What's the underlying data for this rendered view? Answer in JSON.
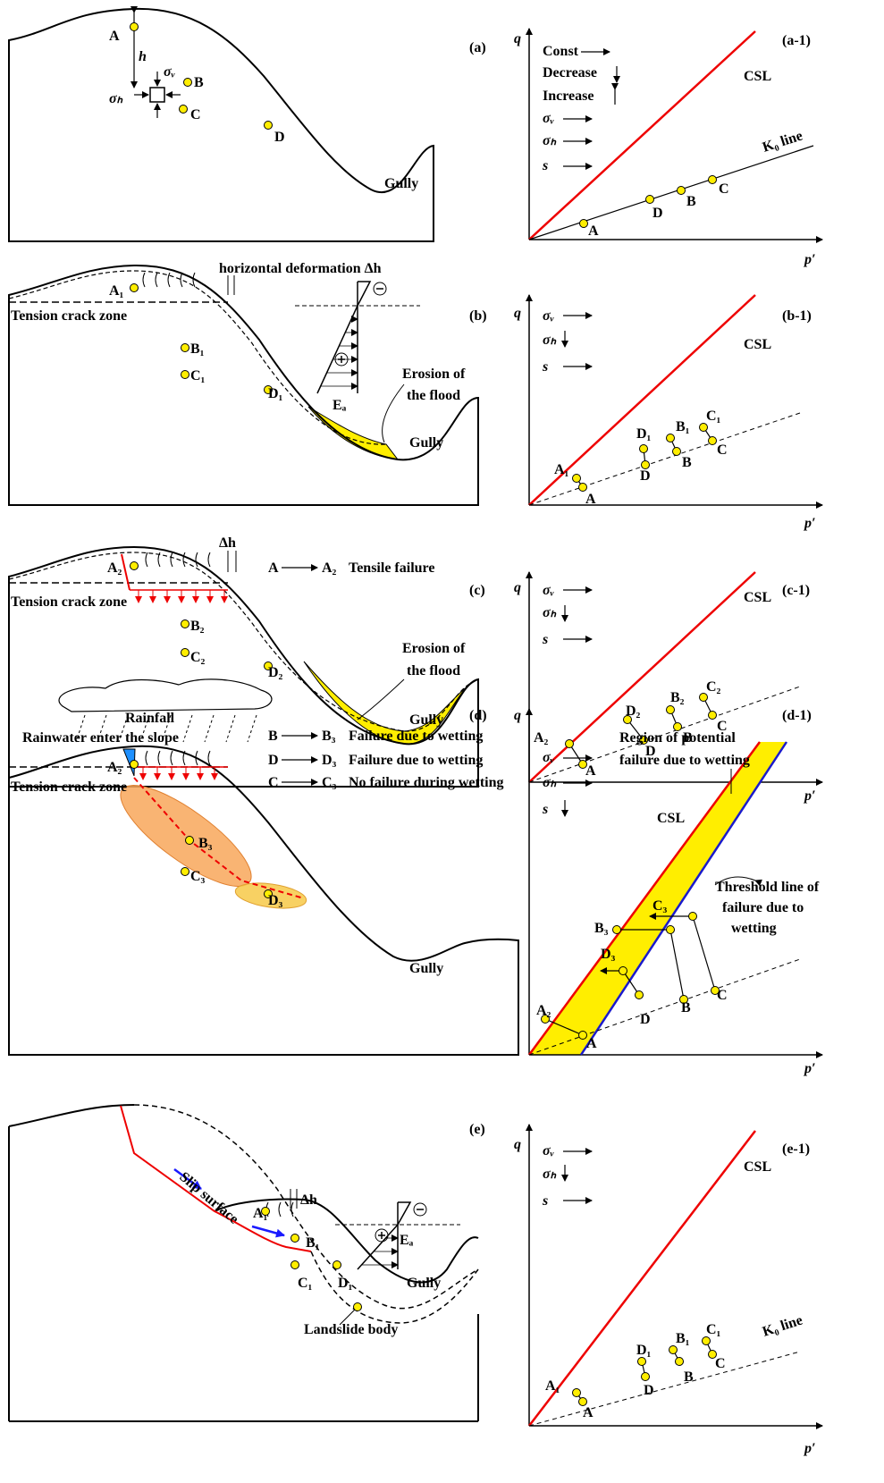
{
  "panels": [
    {
      "texts": [
        "(a)",
        "A",
        "h",
        "σᵥ",
        "B",
        "σₕ",
        "C",
        "D",
        "Gully"
      ]
    },
    {
      "texts": [
        "(a-1)",
        "q",
        "p′",
        "CSL",
        "K₀ line",
        "Const",
        "Decrease",
        "Increase",
        "σᵥ",
        "σₕ",
        "s",
        "A",
        "D",
        "B",
        "C"
      ]
    },
    {
      "texts": [
        "(b)",
        "horizontal deformation Δh",
        "Tension crack zone",
        "A₁",
        "B₁",
        "C₁",
        "D₁",
        "Eₐ",
        "Erosion of",
        "the flood",
        "Gully"
      ]
    },
    {
      "texts": [
        "(b-1)",
        "q",
        "p′",
        "CSL",
        "σᵥ",
        "σₕ",
        "s",
        "A₁",
        "A",
        "D₁",
        "D",
        "B₁",
        "B",
        "C₁",
        "C"
      ]
    },
    {
      "texts": [
        "(c)",
        "Δh",
        "A",
        "A₂",
        "Tensile failure",
        "Tension crack zone",
        "A₂",
        "B₂",
        "C₂",
        "D₂",
        "Erosion of",
        "the flood",
        "Gully"
      ]
    },
    {
      "texts": [
        "(c-1)",
        "q",
        "p′",
        "CSL",
        "σᵥ",
        "σₕ",
        "s",
        "A₂",
        "A",
        "D₂",
        "D",
        "B₂",
        "B",
        "C₂",
        "C"
      ]
    },
    {
      "texts": [
        "(d)",
        "Rainfall",
        "Rainwater enter the slope",
        "Tension crack zone",
        "A₂",
        "B",
        "B₃",
        "Failure due to wetting",
        "D",
        "D₃",
        "Failure due to wetting",
        "C",
        "C₃",
        "No failure during wetting",
        "B₃",
        "C₃",
        "D₃",
        "Gully"
      ]
    },
    {
      "texts": [
        "(d-1)",
        "q",
        "p′",
        "Region of potential",
        "failure due to wetting",
        "CSL",
        "Threshold line of",
        "failure due to",
        "wetting",
        "σᵥ",
        "σₕ",
        "s",
        "A₂",
        "A",
        "D₃",
        "D",
        "B₃",
        "B",
        "C₃",
        "C"
      ]
    },
    {
      "texts": [
        "(e)",
        "Slip surface",
        "Δh",
        "A₁",
        "B₁",
        "C₁",
        "D₁",
        "Eₐ",
        "Gully",
        "Landslide body"
      ]
    },
    {
      "texts": [
        "(e-1)",
        "q",
        "p′",
        "CSL",
        "K₀ line",
        "σᵥ",
        "σₕ",
        "s",
        "A₁",
        "A",
        "D₁",
        "D",
        "B₁",
        "B",
        "C₁",
        "C"
      ]
    }
  ]
}
